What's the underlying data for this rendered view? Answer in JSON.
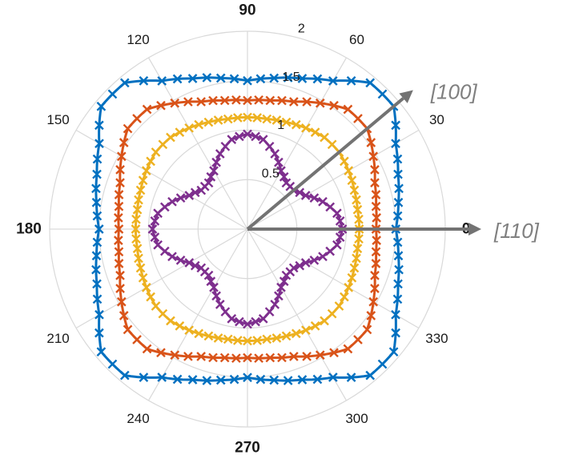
{
  "chart_data": {
    "type": "scatter",
    "polar": true,
    "title": "",
    "angle_unit": "deg",
    "angle_ticks": [
      0,
      30,
      60,
      90,
      120,
      150,
      180,
      210,
      240,
      270,
      300,
      330
    ],
    "angle_tick_labels": [
      "0",
      "30",
      "60",
      "90",
      "120",
      "150",
      "180",
      "210",
      "240",
      "270",
      "300",
      "330"
    ],
    "bold_angle_ticks": [
      "0",
      "90",
      "180",
      "270"
    ],
    "r_ticks": [
      0.5,
      1,
      1.5,
      2
    ],
    "r_tick_labels": [
      "0.5",
      "1",
      "1.5",
      "2"
    ],
    "rlim": [
      0,
      2
    ],
    "grid": true,
    "marker": "x",
    "angles": [
      0,
      10,
      20,
      30,
      40,
      50,
      60,
      70,
      80,
      90,
      100,
      110,
      120,
      130,
      140,
      150,
      160,
      170,
      180,
      190,
      200,
      210,
      220,
      230,
      240,
      250,
      260,
      270,
      280,
      290,
      300,
      310,
      320,
      330,
      340,
      350
    ],
    "series": [
      {
        "color": "#0070c0",
        "r": [
          1.5,
          1.55,
          1.62,
          1.73,
          1.93,
          1.93,
          1.73,
          1.62,
          1.55,
          1.5,
          1.55,
          1.62,
          1.73,
          1.93,
          1.93,
          1.73,
          1.62,
          1.55,
          1.5,
          1.55,
          1.62,
          1.73,
          1.93,
          1.93,
          1.73,
          1.62,
          1.55,
          1.5,
          1.55,
          1.62,
          1.73,
          1.93,
          1.93,
          1.73,
          1.62,
          1.55
        ]
      },
      {
        "color": "#d95319",
        "r": [
          1.3,
          1.32,
          1.37,
          1.47,
          1.58,
          1.58,
          1.47,
          1.37,
          1.32,
          1.3,
          1.32,
          1.37,
          1.47,
          1.58,
          1.58,
          1.47,
          1.37,
          1.32,
          1.3,
          1.32,
          1.37,
          1.47,
          1.58,
          1.58,
          1.47,
          1.37,
          1.32,
          1.3,
          1.32,
          1.37,
          1.47,
          1.58,
          1.58,
          1.47,
          1.37,
          1.32
        ]
      },
      {
        "color": "#edb120",
        "r": [
          1.13,
          1.13,
          1.15,
          1.18,
          1.21,
          1.21,
          1.18,
          1.15,
          1.13,
          1.13,
          1.13,
          1.15,
          1.18,
          1.21,
          1.21,
          1.18,
          1.15,
          1.13,
          1.13,
          1.13,
          1.15,
          1.18,
          1.21,
          1.21,
          1.18,
          1.15,
          1.13,
          1.13,
          1.13,
          1.15,
          1.18,
          1.21,
          1.21,
          1.18,
          1.15,
          1.13
        ]
      },
      {
        "color": "#7e2f8e",
        "r": [
          0.96,
          0.92,
          0.81,
          0.68,
          0.61,
          0.61,
          0.68,
          0.81,
          0.92,
          0.96,
          0.92,
          0.81,
          0.68,
          0.61,
          0.61,
          0.68,
          0.81,
          0.92,
          0.96,
          0.92,
          0.81,
          0.68,
          0.61,
          0.61,
          0.68,
          0.81,
          0.92,
          0.96,
          0.92,
          0.81,
          0.68,
          0.61,
          0.61,
          0.68,
          0.81,
          0.92
        ]
      }
    ],
    "direction_arrows": [
      {
        "label": "[100]",
        "angle": 40
      },
      {
        "label": "[110]",
        "angle": 0
      }
    ]
  }
}
